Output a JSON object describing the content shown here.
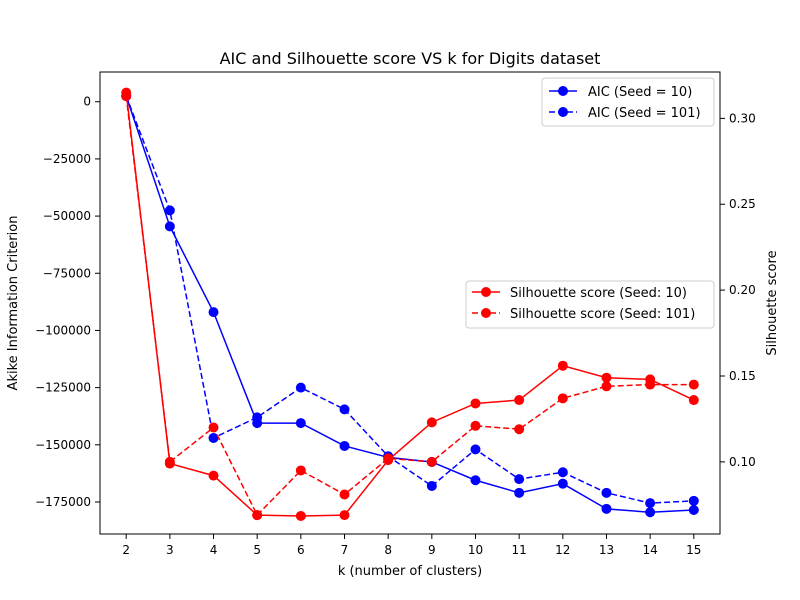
{
  "chart_data": {
    "type": "line",
    "title": "AIC and Silhouette score VS k for Digits dataset",
    "xlabel": "k (number of clusters)",
    "ylabel_left": "Akike Information Criterion",
    "ylabel_right": "Silhouette score",
    "x": [
      2,
      3,
      4,
      5,
      6,
      7,
      8,
      9,
      10,
      11,
      12,
      13,
      14,
      15
    ],
    "xlim": [
      1.4,
      15.6
    ],
    "ylim_left": [
      -189000,
      13000
    ],
    "ylim_right": [
      0.058,
      0.327
    ],
    "xticks": [
      "2",
      "3",
      "4",
      "5",
      "6",
      "7",
      "8",
      "9",
      "10",
      "11",
      "12",
      "13",
      "14",
      "15"
    ],
    "yticks_left": [
      "0",
      "−25000",
      "−50000",
      "−75000",
      "−100000",
      "−125000",
      "−150000",
      "−175000"
    ],
    "yticks_left_values": [
      0,
      -25000,
      -50000,
      -75000,
      -100000,
      -125000,
      -150000,
      -175000
    ],
    "yticks_right": [
      "0.10",
      "0.15",
      "0.20",
      "0.25",
      "0.30"
    ],
    "yticks_right_values": [
      0.1,
      0.15,
      0.2,
      0.25,
      0.3
    ],
    "grid": false,
    "series_left": [
      {
        "name": "AIC (Seed = 10)",
        "color": "#0000ff",
        "dash": "solid",
        "values": [
          2500,
          -54500,
          -92000,
          -140500,
          -140500,
          -150500,
          -155500,
          -157500,
          -165500,
          -171000,
          -167000,
          -178000,
          -179500,
          -178500
        ]
      },
      {
        "name": "AIC (Seed = 101)",
        "color": "#0000ff",
        "dash": "dashed",
        "values": [
          2500,
          -47500,
          -147000,
          -138000,
          -125000,
          -134500,
          -155000,
          -168000,
          -152000,
          -165000,
          -162000,
          -171000,
          -175500,
          -174500
        ]
      }
    ],
    "series_right": [
      {
        "name": "Silhouette score (Seed: 10)",
        "color": "#ff0000",
        "dash": "solid",
        "values": [
          0.315,
          0.099,
          0.092,
          0.069,
          0.0685,
          0.069,
          0.101,
          0.123,
          0.134,
          0.136,
          0.156,
          0.149,
          0.148,
          0.136
        ]
      },
      {
        "name": "Silhouette score (Seed: 101)",
        "color": "#ff0000",
        "dash": "dashed",
        "values": [
          0.313,
          0.1,
          0.12,
          0.069,
          0.095,
          0.081,
          0.102,
          0.1,
          0.121,
          0.119,
          0.137,
          0.144,
          0.145,
          0.145
        ]
      }
    ],
    "legend_left_placement": "top-right",
    "legend_right_placement": "center-right"
  }
}
